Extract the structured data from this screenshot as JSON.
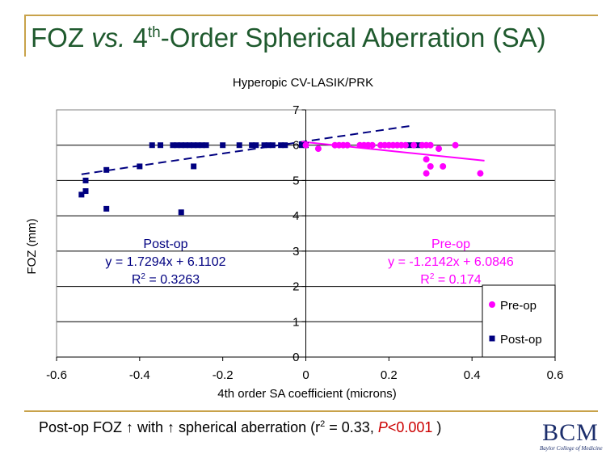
{
  "slide": {
    "title_pre": "FOZ ",
    "title_vs": "vs.",
    "title_mid": " 4",
    "title_sup": "th",
    "title_post": "-Order Spherical Aberration (SA)"
  },
  "footer": {
    "text1": "Post-op FOZ ",
    "arrow": "↑",
    "text2": " with ",
    "text3": " spherical aberration (r",
    "r2_sup": "2",
    "text4": " = 0.33, ",
    "p_label": "P",
    "p_value": "<0.001",
    "text5": " )"
  },
  "logo": {
    "mark": "BCM",
    "subtitle": "Baylor College of Medicine"
  },
  "colors": {
    "accent_rule": "#c8a24a",
    "title": "#1f5a2e",
    "postop": "#000080",
    "preop": "#ff00ff",
    "footer_p": "#cc0000"
  },
  "chart_data": {
    "type": "scatter",
    "title": "Hyperopic CV-LASIK/PRK",
    "xlabel": "4th order SA coefficient (microns)",
    "ylabel": "FOZ (mm)",
    "xlim": [
      -0.6,
      0.6
    ],
    "ylim": [
      0,
      7
    ],
    "xticks": [
      -0.6,
      -0.4,
      -0.2,
      0,
      0.2,
      0.4,
      0.6
    ],
    "xtick_labels": [
      "-0.6",
      "-0.4",
      "-0.2",
      "0",
      "0.2",
      "0.4",
      "0.6"
    ],
    "yticks": [
      0,
      1,
      2,
      3,
      4,
      5,
      6,
      7
    ],
    "ytick_labels": [
      "0",
      "1",
      "2",
      "3",
      "4",
      "5",
      "6",
      "7"
    ],
    "grid": "horizontal",
    "legend": "bottom-right",
    "series": [
      {
        "name": "Pre-op",
        "marker": "circle",
        "color": "#ff00ff",
        "points": [
          [
            0.0,
            6.0
          ],
          [
            0.03,
            5.9
          ],
          [
            0.07,
            6.0
          ],
          [
            0.08,
            6.0
          ],
          [
            0.09,
            6.0
          ],
          [
            0.1,
            6.0
          ],
          [
            0.13,
            6.0
          ],
          [
            0.14,
            6.0
          ],
          [
            0.15,
            6.0
          ],
          [
            0.16,
            6.0
          ],
          [
            0.18,
            6.0
          ],
          [
            0.19,
            6.0
          ],
          [
            0.2,
            6.0
          ],
          [
            0.21,
            6.0
          ],
          [
            0.22,
            6.0
          ],
          [
            0.23,
            6.0
          ],
          [
            0.24,
            6.0
          ],
          [
            0.26,
            6.0
          ],
          [
            0.28,
            6.0
          ],
          [
            0.29,
            6.0
          ],
          [
            0.3,
            6.0
          ],
          [
            0.29,
            5.6
          ],
          [
            0.3,
            5.4
          ],
          [
            0.29,
            5.2
          ],
          [
            0.32,
            5.9
          ],
          [
            0.33,
            5.4
          ],
          [
            0.36,
            6.0
          ],
          [
            0.42,
            5.2
          ]
        ],
        "trendline": {
          "slope": -1.2142,
          "intercept": 6.0846,
          "x_range": [
            -0.01,
            0.43
          ]
        },
        "equation": "y = -1.2142x + 6.0846",
        "label": "Pre-op",
        "r2_prefix": "R",
        "r2_sup": "2",
        "r2_value": " = 0.174"
      },
      {
        "name": "Post-op",
        "marker": "square",
        "color": "#000080",
        "points": [
          [
            -0.54,
            4.6
          ],
          [
            -0.53,
            4.7
          ],
          [
            -0.53,
            5.0
          ],
          [
            -0.48,
            5.3
          ],
          [
            -0.48,
            4.2
          ],
          [
            -0.4,
            5.4
          ],
          [
            -0.3,
            4.1
          ],
          [
            -0.27,
            5.4
          ],
          [
            -0.37,
            6.0
          ],
          [
            -0.35,
            6.0
          ],
          [
            -0.32,
            6.0
          ],
          [
            -0.31,
            6.0
          ],
          [
            -0.3,
            6.0
          ],
          [
            -0.29,
            6.0
          ],
          [
            -0.28,
            6.0
          ],
          [
            -0.27,
            6.0
          ],
          [
            -0.26,
            6.0
          ],
          [
            -0.25,
            6.0
          ],
          [
            -0.24,
            6.0
          ],
          [
            -0.2,
            6.0
          ],
          [
            -0.16,
            6.0
          ],
          [
            -0.13,
            6.0
          ],
          [
            -0.12,
            6.0
          ],
          [
            -0.1,
            6.0
          ],
          [
            -0.09,
            6.0
          ],
          [
            -0.08,
            6.0
          ],
          [
            -0.06,
            6.0
          ],
          [
            -0.05,
            6.0
          ],
          [
            -0.01,
            6.0
          ],
          [
            0.0,
            6.0
          ],
          [
            0.25,
            6.0
          ],
          [
            0.27,
            6.0
          ]
        ],
        "trendline": {
          "slope": 1.7294,
          "intercept": 6.1102,
          "x_range": [
            -0.54,
            0.26
          ]
        },
        "equation": "y = 1.7294x + 6.1102",
        "label": "Post-op",
        "r2_prefix": "R",
        "r2_sup": "2",
        "r2_value": " = 0.3263"
      }
    ]
  }
}
